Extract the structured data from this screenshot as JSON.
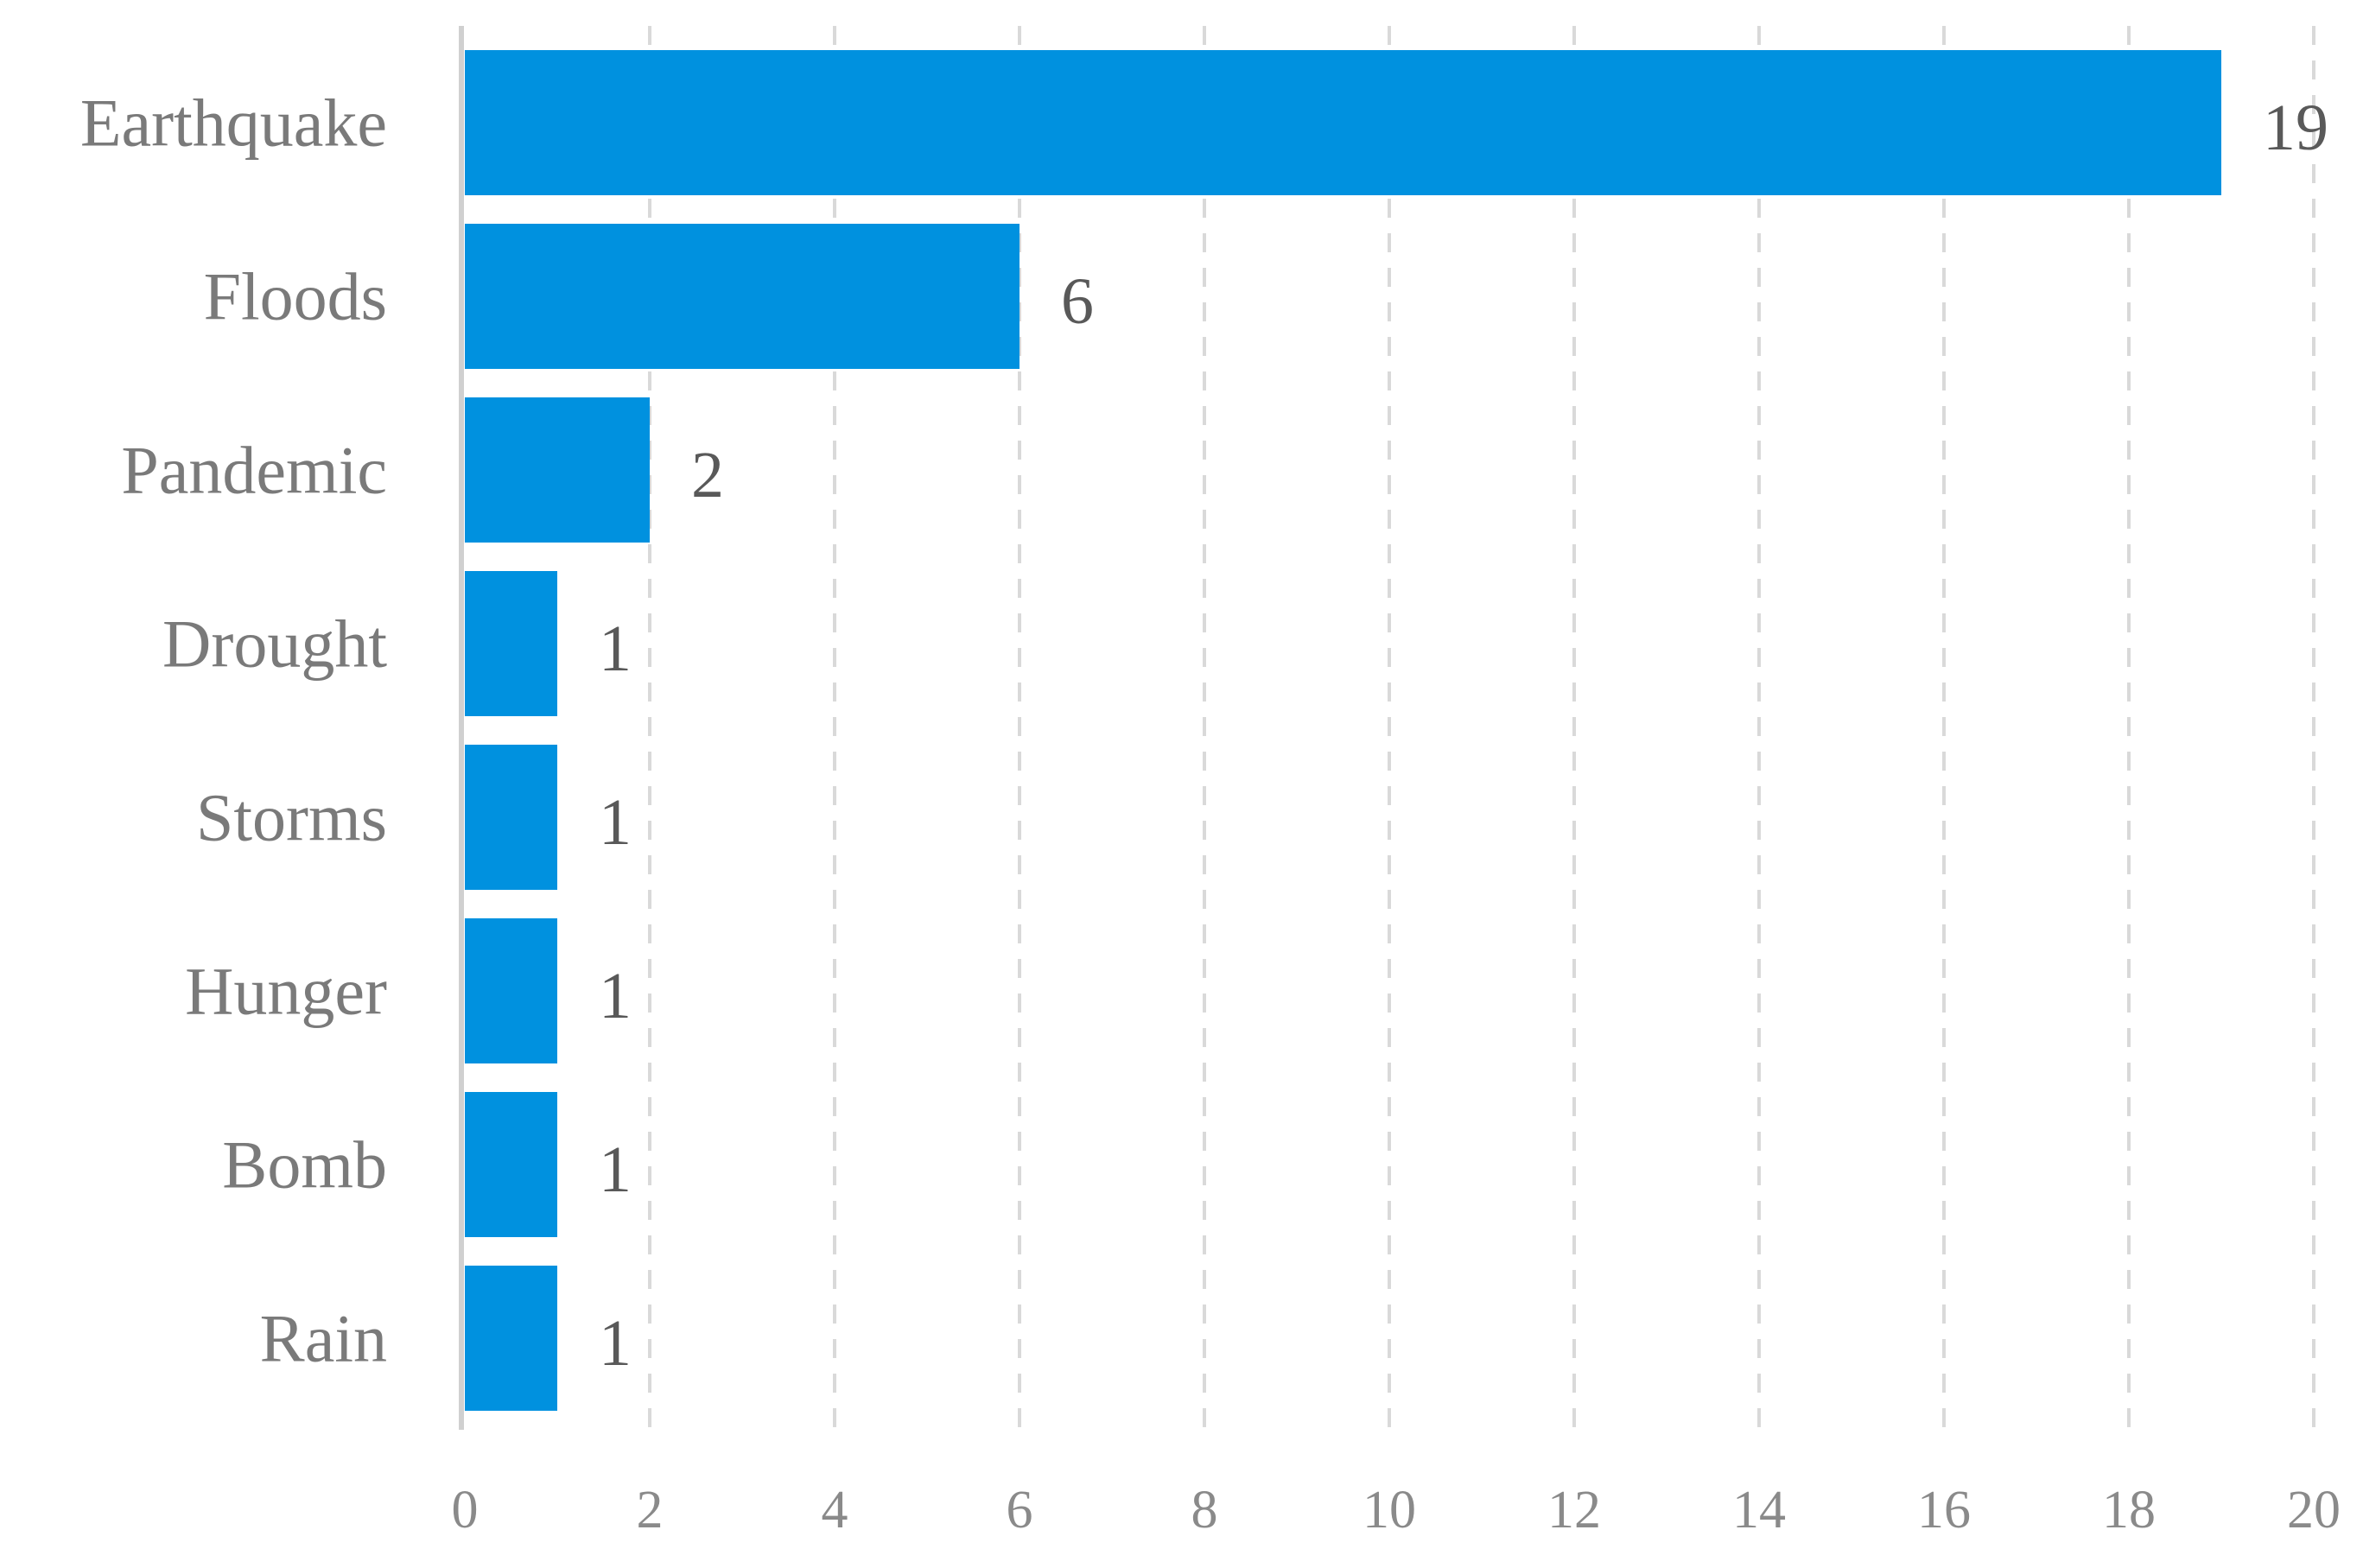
{
  "chart_data": {
    "type": "bar",
    "orientation": "horizontal",
    "categories": [
      "Earthquake",
      "Floods",
      "Pandemic",
      "Drought",
      "Storms",
      "Hunger",
      "Bomb",
      "Rain"
    ],
    "values": [
      19,
      6,
      2,
      1,
      1,
      1,
      1,
      1
    ],
    "data_labels": [
      "19",
      "6",
      "2",
      "1",
      "1",
      "1",
      "1",
      "1"
    ],
    "xlim": [
      0,
      20
    ],
    "x_ticks": [
      0,
      2,
      4,
      6,
      8,
      10,
      12,
      14,
      16,
      18,
      20
    ],
    "x_tick_labels": [
      "0",
      "2",
      "4",
      "6",
      "8",
      "10",
      "12",
      "14",
      "16",
      "18",
      "20"
    ],
    "title": "",
    "xlabel": "",
    "ylabel": "",
    "grid": "vertical dashed",
    "legend": "none",
    "bar_color": "#0091DF"
  }
}
